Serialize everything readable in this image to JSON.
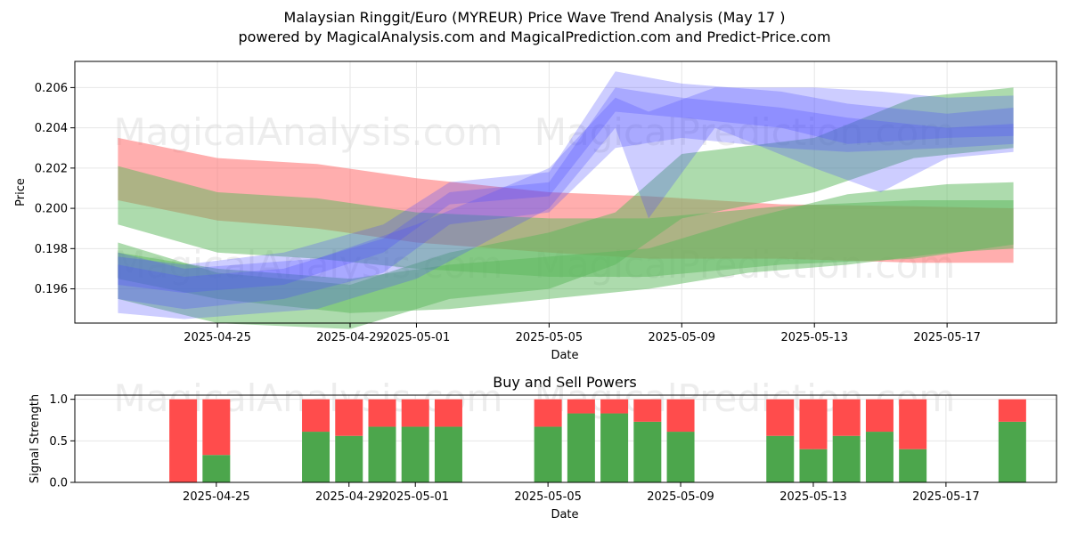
{
  "header": {
    "title_line1": "Malaysian Ringgit/Euro (MYREUR) Price Wave Trend Analysis (May 17 )",
    "title_line2": "powered by MagicalAnalysis.com and MagicalPrediction.com and Predict-Price.com"
  },
  "watermarks": [
    "MagicalAnalysis.com",
    "MagicalPrediction.com"
  ],
  "colors": {
    "red_band": "#ff6b6b",
    "green_band": "#5cb85c",
    "blue_band": "#4a4aff",
    "buy": "#4ca64c",
    "sell": "#ff4c4c"
  },
  "chart_data": [
    {
      "type": "area",
      "title": "",
      "xlabel": "Date",
      "ylabel": "Price",
      "grid": true,
      "ylim": [
        0.1943,
        0.2073
      ],
      "xlim": [
        "2025-04-21",
        "2025-05-20"
      ],
      "x_ticks": [
        "2025-04-25",
        "2025-04-29",
        "2025-05-01",
        "2025-05-05",
        "2025-05-09",
        "2025-05-13",
        "2025-05-17"
      ],
      "y_ticks": [
        0.196,
        0.198,
        0.2,
        0.202,
        0.204,
        0.206
      ],
      "series": [
        {
          "color": "red",
          "x": [
            "2025-04-22",
            "2025-04-25",
            "2025-04-28",
            "2025-05-01",
            "2025-05-05",
            "2025-05-08",
            "2025-05-12",
            "2025-05-16",
            "2025-05-19"
          ],
          "upper": [
            0.2035,
            0.2025,
            0.2022,
            0.2015,
            0.2008,
            0.2006,
            0.2002,
            0.2001,
            0.2
          ],
          "lower": [
            0.2004,
            0.1994,
            0.199,
            0.1983,
            0.1978,
            0.1975,
            0.1975,
            0.1973,
            0.1973
          ]
        },
        {
          "color": "green",
          "x": [
            "2025-04-22",
            "2025-04-25",
            "2025-04-28",
            "2025-05-01",
            "2025-05-05",
            "2025-05-08",
            "2025-05-12",
            "2025-05-16",
            "2025-05-19"
          ],
          "upper": [
            0.2021,
            0.2008,
            0.2005,
            0.1998,
            0.1995,
            0.1995,
            0.2001,
            0.2004,
            0.2004
          ],
          "lower": [
            0.1992,
            0.1978,
            0.1975,
            0.197,
            0.1966,
            0.1966,
            0.1972,
            0.1975,
            0.1982
          ]
        },
        {
          "color": "green",
          "x": [
            "2025-04-22",
            "2025-04-25",
            "2025-04-29",
            "2025-05-02",
            "2025-05-05",
            "2025-05-07",
            "2025-05-09",
            "2025-05-13",
            "2025-05-16",
            "2025-05-19"
          ],
          "upper": [
            0.1983,
            0.1968,
            0.1962,
            0.1978,
            0.1988,
            0.1998,
            0.2027,
            0.2035,
            0.2055,
            0.206
          ],
          "lower": [
            0.1955,
            0.1943,
            0.194,
            0.1955,
            0.196,
            0.1972,
            0.1995,
            0.2008,
            0.2025,
            0.203
          ]
        },
        {
          "color": "green",
          "x": [
            "2025-04-22",
            "2025-04-25",
            "2025-04-29",
            "2025-05-02",
            "2025-05-05",
            "2025-05-08",
            "2025-05-11",
            "2025-05-14",
            "2025-05-17",
            "2025-05-19"
          ],
          "upper": [
            0.1978,
            0.197,
            0.1965,
            0.1972,
            0.1976,
            0.198,
            0.1995,
            0.2007,
            0.2012,
            0.2013
          ],
          "lower": [
            0.1965,
            0.1955,
            0.1948,
            0.195,
            0.1955,
            0.196,
            0.1968,
            0.1972,
            0.1978,
            0.198
          ]
        },
        {
          "color": "blue",
          "x": [
            "2025-04-22",
            "2025-04-24",
            "2025-04-27",
            "2025-04-30",
            "2025-05-02",
            "2025-05-05",
            "2025-05-07",
            "2025-05-09",
            "2025-05-12",
            "2025-05-14",
            "2025-05-17",
            "2025-05-19"
          ],
          "upper": [
            0.1976,
            0.1972,
            0.1978,
            0.1992,
            0.2013,
            0.2018,
            0.2068,
            0.2062,
            0.2058,
            0.2052,
            0.2047,
            0.205
          ],
          "lower": [
            0.1962,
            0.1958,
            0.1962,
            0.1978,
            0.2002,
            0.2006,
            0.2048,
            0.2045,
            0.204,
            0.2032,
            0.2035,
            0.2036
          ]
        },
        {
          "color": "blue",
          "x": [
            "2025-04-22",
            "2025-04-24",
            "2025-04-27",
            "2025-04-30",
            "2025-05-02",
            "2025-05-05",
            "2025-05-07",
            "2025-05-09",
            "2025-05-12",
            "2025-05-14",
            "2025-05-17",
            "2025-05-19"
          ],
          "upper": [
            0.1972,
            0.1966,
            0.197,
            0.1985,
            0.2008,
            0.2013,
            0.206,
            0.2055,
            0.205,
            0.2045,
            0.204,
            0.2042
          ],
          "lower": [
            0.1955,
            0.195,
            0.1955,
            0.1968,
            0.1992,
            0.1998,
            0.203,
            0.2035,
            0.203,
            0.2028,
            0.203,
            0.2032
          ]
        },
        {
          "color": "blue",
          "x": [
            "2025-04-22",
            "2025-04-24",
            "2025-04-28",
            "2025-05-01",
            "2025-05-05",
            "2025-05-07",
            "2025-05-08",
            "2025-05-10",
            "2025-05-13",
            "2025-05-15",
            "2025-05-17",
            "2025-05-19"
          ],
          "upper": [
            0.1978,
            0.197,
            0.1975,
            0.1992,
            0.202,
            0.2055,
            0.2048,
            0.206,
            0.206,
            0.2058,
            0.2055,
            0.2056
          ],
          "lower": [
            0.1948,
            0.1945,
            0.195,
            0.1965,
            0.2,
            0.204,
            0.1995,
            0.204,
            0.202,
            0.2008,
            0.2025,
            0.2028
          ]
        }
      ]
    },
    {
      "type": "bar",
      "title": "Buy and Sell Powers",
      "xlabel": "Date",
      "ylabel": "Signal Strength",
      "ylim": [
        0,
        1.05
      ],
      "y_ticks": [
        "0.0",
        "0.5",
        "1.0"
      ],
      "x_ticks": [
        "2025-04-25",
        "2025-04-29",
        "2025-05-01",
        "2025-05-05",
        "2025-05-09",
        "2025-05-13",
        "2025-05-17"
      ],
      "categories": [
        "2025-04-24",
        "2025-04-25",
        "2025-04-28",
        "2025-04-29",
        "2025-04-30",
        "2025-05-01",
        "2025-05-02",
        "2025-05-05",
        "2025-05-06",
        "2025-05-07",
        "2025-05-08",
        "2025-05-09",
        "2025-05-12",
        "2025-05-13",
        "2025-05-14",
        "2025-05-15",
        "2025-05-16",
        "2025-05-19"
      ],
      "series": [
        {
          "name": "Buy",
          "values": [
            0.0,
            0.33,
            0.61,
            0.56,
            0.67,
            0.67,
            0.67,
            0.67,
            0.83,
            0.83,
            0.73,
            0.61,
            0.56,
            0.4,
            0.56,
            0.61,
            0.4,
            0.73
          ]
        },
        {
          "name": "Sell",
          "values": [
            1.0,
            0.67,
            0.39,
            0.44,
            0.33,
            0.33,
            0.33,
            0.33,
            0.17,
            0.17,
            0.27,
            0.39,
            0.44,
            0.6,
            0.44,
            0.39,
            0.6,
            0.27
          ]
        }
      ]
    }
  ]
}
